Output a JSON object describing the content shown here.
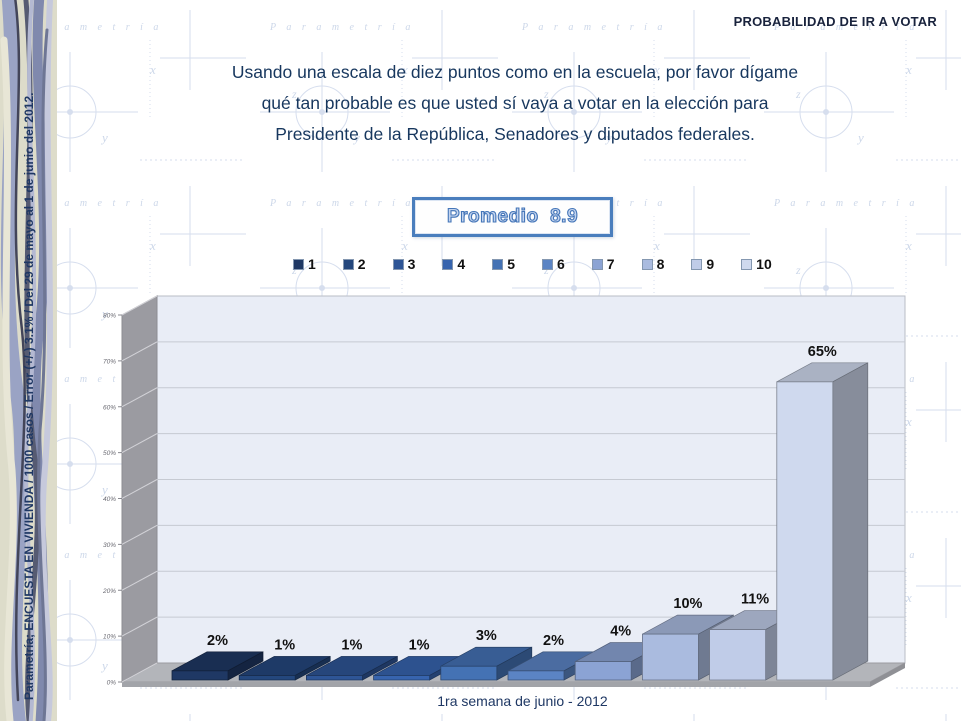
{
  "slide": {
    "header_title": "PROBABILIDAD DE IR A VOTAR",
    "question_lines": [
      "Usando una escala de diez puntos como en la escuela, por favor dígame",
      "qué tan probable es que usted sí vaya a votar en la elección para",
      "Presidente de la República, Senadores y diputados federales."
    ],
    "promedio_label": "Promedio  8.9",
    "sidebar_text": "Parametría; ENCUESTA EN VIVIENDA / 1000 casos / Error (+/-) 3.1% / Del 29 de mayo al 1 de junio del 2012.",
    "watermark_word": "Parametria"
  },
  "colors": {
    "navy_text": "#17375e",
    "promedio_border": "#4a7ebd",
    "back_wall": "#e9edf6",
    "side_wall": "#9b9ba1",
    "floor": "#b3b5ba",
    "floor_edge": "#a2a4a9",
    "gridline": "#c6cad2",
    "watermark": "#ccd7e9",
    "bar_palette": [
      "#1f3864",
      "#24477d",
      "#2e5596",
      "#3764ae",
      "#4472b4",
      "#5b84c4",
      "#8ba3d4",
      "#aabbdf",
      "#c0cce8",
      "#cfd9ee"
    ]
  },
  "chart_data": {
    "type": "bar",
    "style": "3d",
    "categories": [
      "1",
      "2",
      "3",
      "4",
      "5",
      "6",
      "7",
      "8",
      "9",
      "10"
    ],
    "values": [
      2,
      1,
      1,
      1,
      3,
      2,
      4,
      10,
      11,
      65
    ],
    "value_labels": [
      "2%",
      "1%",
      "1%",
      "1%",
      "3%",
      "2%",
      "4%",
      "10%",
      "11%",
      "65%"
    ],
    "y_ticks": [
      "80%",
      "70%",
      "60%",
      "50%",
      "40%",
      "30%",
      "20%",
      "10%",
      "0%"
    ],
    "ylim": [
      0,
      80
    ],
    "x_axis_label": "1ra semana de junio - 2012",
    "legend_position": "top",
    "grid": true
  }
}
